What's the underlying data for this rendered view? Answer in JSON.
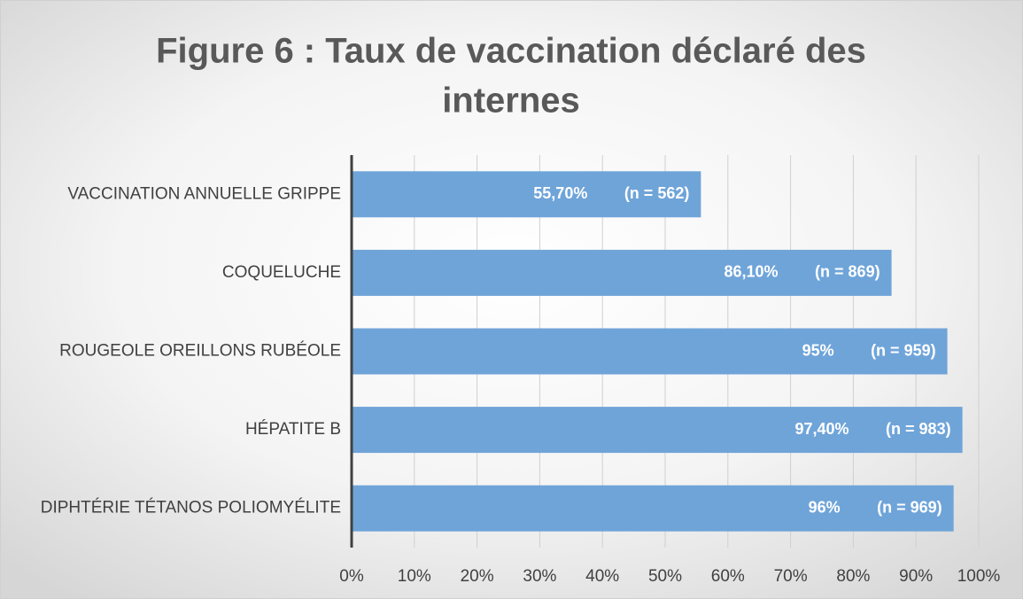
{
  "chart_data": {
    "type": "barh",
    "title": [
      "Figure 6 : Taux de vaccination déclaré des",
      "internes"
    ],
    "categories": [
      "VACCINATION ANNUELLE GRIPPE",
      "COQUELUCHE",
      "ROUGEOLE OREILLONS RUBÉOLE",
      "HÉPATITE B",
      "DIPHTÉRIE TÉTANOS POLIOMYÉLITE"
    ],
    "values": [
      55.7,
      86.1,
      95,
      97.4,
      96
    ],
    "value_labels": [
      "55,70%",
      "86,10%",
      "95%",
      "97,40%",
      "96%"
    ],
    "count_labels": [
      "(n = 562)",
      "(n = 869)",
      "(n = 959)",
      "(n = 983)",
      "(n = 969)"
    ],
    "color": "#6fa4d9",
    "xlim": [
      0,
      100
    ],
    "xticks": [
      {
        "value": 0,
        "label": "0%"
      },
      {
        "value": 10,
        "label": "10%"
      },
      {
        "value": 20,
        "label": "20%"
      },
      {
        "value": 30,
        "label": "30%"
      },
      {
        "value": 40,
        "label": "40%"
      },
      {
        "value": 50,
        "label": "50%"
      },
      {
        "value": 60,
        "label": "60%"
      },
      {
        "value": 70,
        "label": "70%"
      },
      {
        "value": 80,
        "label": "80%"
      },
      {
        "value": 90,
        "label": "90%"
      },
      {
        "value": 100,
        "label": "100%"
      }
    ],
    "grid": true
  }
}
